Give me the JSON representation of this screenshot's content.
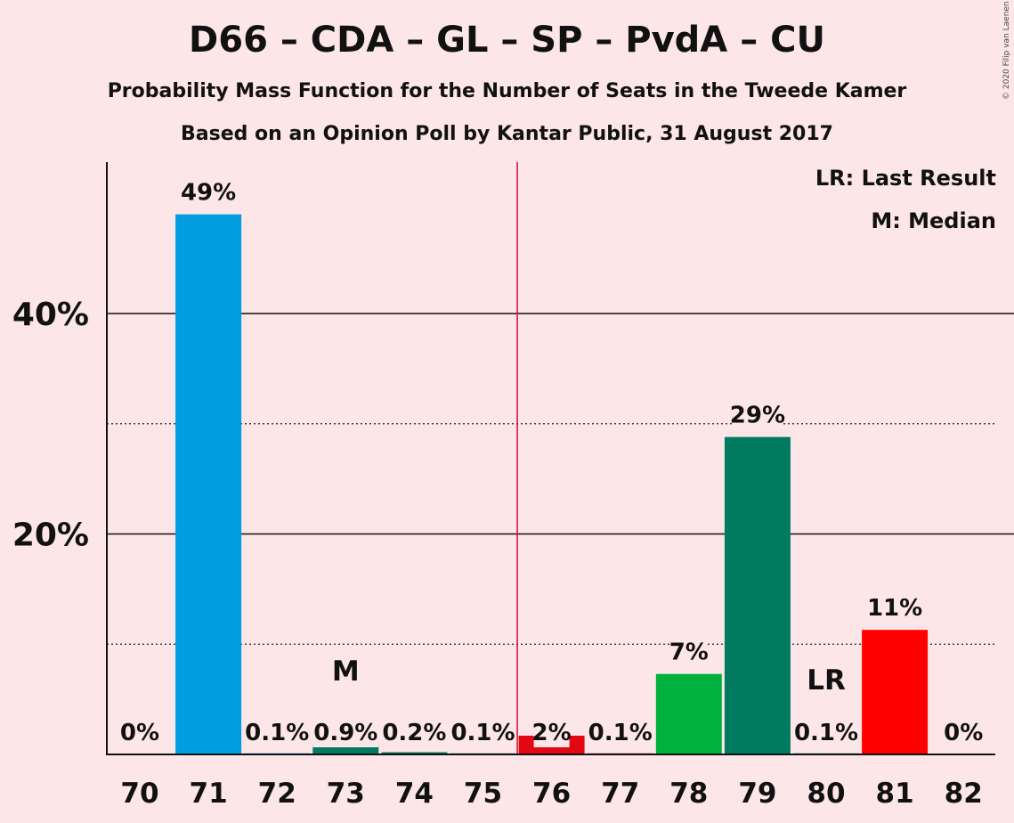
{
  "title": "D66 – CDA – GL – SP – PvdA – CU",
  "subtitle": "Probability Mass Function for the Number of Seats in the Tweede Kamer",
  "subtitle2": "Based on an Opinion Poll by Kantar Public, 31 August 2017",
  "copyright": "© 2020 Filip van Laenen",
  "legend": {
    "last_result": "LR: Last Result",
    "median": "M: Median"
  },
  "chart_data": {
    "type": "bar",
    "categories": [
      "70",
      "71",
      "72",
      "73",
      "74",
      "75",
      "76",
      "77",
      "78",
      "79",
      "80",
      "81",
      "82"
    ],
    "values": [
      0,
      49,
      0.1,
      0.9,
      0.2,
      0.1,
      1.7,
      0.1,
      7.3,
      28.8,
      0.1,
      11.3,
      0
    ],
    "labels": [
      "0%",
      "49%",
      "0.1%",
      "0.9%",
      "0.2%",
      "0.1%",
      "2%",
      "0.1%",
      "7%",
      "29%",
      "0.1%",
      "11%",
      "0%"
    ],
    "colors": [
      "#009ee0",
      "#009ee0",
      "#009ee0",
      "#007b5f",
      "#007b5f",
      "#007b5f",
      "#e30613",
      "#e30613",
      "#00b13d",
      "#007b5f",
      "#007b5f",
      "#ff0000",
      "#ff0000"
    ],
    "ylim": [
      0,
      53.5
    ],
    "yticks": [
      20,
      40
    ],
    "ytick_labels": [
      "20%",
      "40%"
    ],
    "minor_gridlines": [
      10,
      30
    ],
    "majority_line_after": "75",
    "majority_line_color": "#c8102e",
    "median_seat": "73",
    "median_marker": "M",
    "last_result_seat": "80",
    "last_result_marker": "LR"
  }
}
